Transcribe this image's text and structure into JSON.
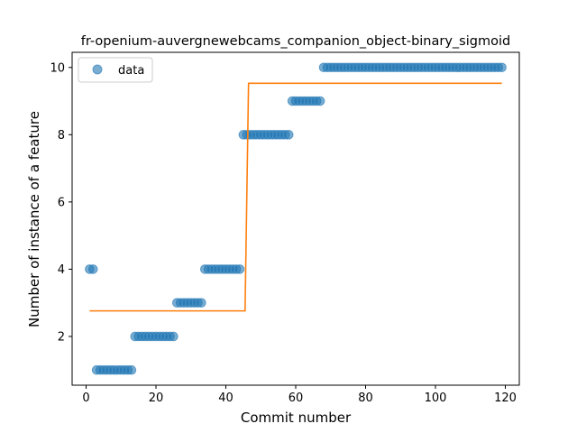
{
  "chart_data": {
    "type": "scatter",
    "title": "fr-openium-auvergnewebcams_companion_object-binary_sigmoid",
    "xlabel": "Commit number",
    "ylabel": "Number of instance of a feature",
    "xlim": [
      -4,
      124
    ],
    "ylim": [
      0.55,
      10.45
    ],
    "xticks": [
      0,
      20,
      40,
      60,
      80,
      100,
      120
    ],
    "yticks": [
      2,
      4,
      6,
      8,
      10
    ],
    "grid": false,
    "legend": {
      "placement": "top-left",
      "entries": [
        "data"
      ]
    },
    "colors": {
      "data": "#1f77b4",
      "fit": "#ff7f0e"
    },
    "series": [
      {
        "name": "data",
        "kind": "scatter",
        "x": [
          1,
          2,
          3,
          4,
          5,
          6,
          7,
          8,
          9,
          10,
          11,
          12,
          13,
          14,
          15,
          16,
          17,
          18,
          19,
          20,
          21,
          22,
          23,
          24,
          25,
          26,
          27,
          28,
          29,
          30,
          31,
          32,
          33,
          34,
          35,
          36,
          37,
          38,
          39,
          40,
          41,
          42,
          43,
          44,
          45,
          46,
          47,
          48,
          49,
          50,
          51,
          52,
          53,
          54,
          55,
          56,
          57,
          58,
          59,
          60,
          61,
          62,
          63,
          64,
          65,
          66,
          67,
          68,
          69,
          70,
          71,
          72,
          73,
          74,
          75,
          76,
          77,
          78,
          79,
          80,
          81,
          82,
          83,
          84,
          85,
          86,
          87,
          88,
          89,
          90,
          91,
          92,
          93,
          94,
          95,
          96,
          97,
          98,
          99,
          100,
          101,
          102,
          103,
          104,
          105,
          106,
          107,
          108,
          109,
          110,
          111,
          112,
          113,
          114,
          115,
          116,
          117,
          118,
          119
        ],
        "y": [
          4,
          4,
          1,
          1,
          1,
          1,
          1,
          1,
          1,
          1,
          1,
          1,
          1,
          2,
          2,
          2,
          2,
          2,
          2,
          2,
          2,
          2,
          2,
          2,
          2,
          3,
          3,
          3,
          3,
          3,
          3,
          3,
          3,
          4,
          4,
          4,
          4,
          4,
          4,
          4,
          4,
          4,
          4,
          4,
          8,
          8,
          8,
          8,
          8,
          8,
          8,
          8,
          8,
          8,
          8,
          8,
          8,
          8,
          9,
          9,
          9,
          9,
          9,
          9,
          9,
          9,
          9,
          10,
          10,
          10,
          10,
          10,
          10,
          10,
          10,
          10,
          10,
          10,
          10,
          10,
          10,
          10,
          10,
          10,
          10,
          10,
          10,
          10,
          10,
          10,
          10,
          10,
          10,
          10,
          10,
          10,
          10,
          10,
          10,
          10,
          10,
          10,
          10,
          10,
          10,
          10,
          10,
          10,
          10,
          10,
          10,
          10,
          10,
          10,
          10,
          10,
          10,
          10,
          10
        ]
      },
      {
        "kind": "line",
        "x": [
          1,
          45.5,
          46.5,
          119
        ],
        "y": [
          2.76,
          2.76,
          9.53,
          9.53
        ]
      }
    ]
  }
}
